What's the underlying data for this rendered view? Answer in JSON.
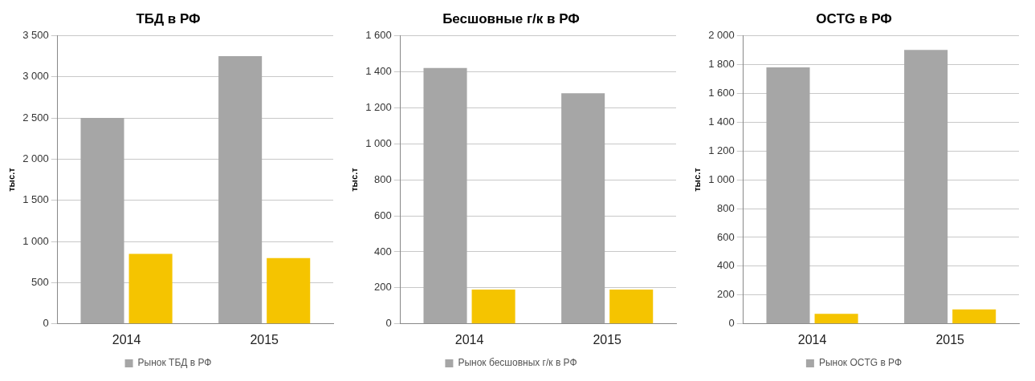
{
  "chart_data": [
    {
      "type": "bar",
      "title": "ТБД в РФ",
      "ylabel": "тыс.т",
      "categories": [
        "2014",
        "2015"
      ],
      "series": [
        {
          "name": "Рынок ТБД в РФ",
          "color": "#a6a6a6",
          "values": [
            2500,
            3250
          ]
        },
        {
          "color": "#f5c400",
          "values": [
            850,
            800
          ]
        }
      ],
      "ylim": [
        0,
        3500
      ],
      "yticks": [
        0,
        {
          "value": 500,
          "label": "500"
        },
        {
          "value": 1000,
          "label": "1 000"
        },
        {
          "value": 1500,
          "label": "1 500"
        },
        {
          "value": 2000,
          "label": "2 000"
        },
        {
          "value": 2500,
          "label": "2 500"
        },
        {
          "value": 3000,
          "label": "3 000"
        },
        {
          "value": 3500,
          "label": "3 500"
        }
      ],
      "grid": "y",
      "legend": "bottom"
    },
    {
      "type": "bar",
      "title": "Бесшовные г/к в РФ",
      "ylabel": "тыс.т",
      "categories": [
        "2014",
        "2015"
      ],
      "series": [
        {
          "name": "Рынок бесшовных г/к в РФ",
          "color": "#a6a6a6",
          "values": [
            1420,
            1280
          ]
        },
        {
          "color": "#f5c400",
          "values": [
            190,
            190
          ]
        }
      ],
      "ylim": [
        0,
        1600
      ],
      "yticks": [
        0,
        200,
        400,
        600,
        800,
        {
          "value": 1000,
          "label": "1 000"
        },
        {
          "value": 1200,
          "label": "1 200"
        },
        {
          "value": 1400,
          "label": "1 400"
        },
        {
          "value": 1600,
          "label": "1 600"
        }
      ],
      "grid": "y",
      "legend": "bottom"
    },
    {
      "type": "bar",
      "title": "OCTG в РФ",
      "ylabel": "тыс.т",
      "categories": [
        "2014",
        "2015"
      ],
      "series": [
        {
          "name": "Рынок OCTG в РФ",
          "color": "#a6a6a6",
          "values": [
            1780,
            1900
          ]
        },
        {
          "color": "#f5c400",
          "values": [
            70,
            100
          ]
        }
      ],
      "ylim": [
        0,
        2000
      ],
      "yticks": [
        0,
        200,
        400,
        600,
        800,
        {
          "value": 1000,
          "label": "1 000"
        },
        {
          "value": 1200,
          "label": "1 200"
        },
        {
          "value": 1400,
          "label": "1 400"
        },
        {
          "value": 1600,
          "label": "1 600"
        },
        {
          "value": 1800,
          "label": "1 800"
        },
        {
          "value": 2000,
          "label": "2 000"
        }
      ],
      "grid": "y",
      "legend": "bottom"
    }
  ]
}
